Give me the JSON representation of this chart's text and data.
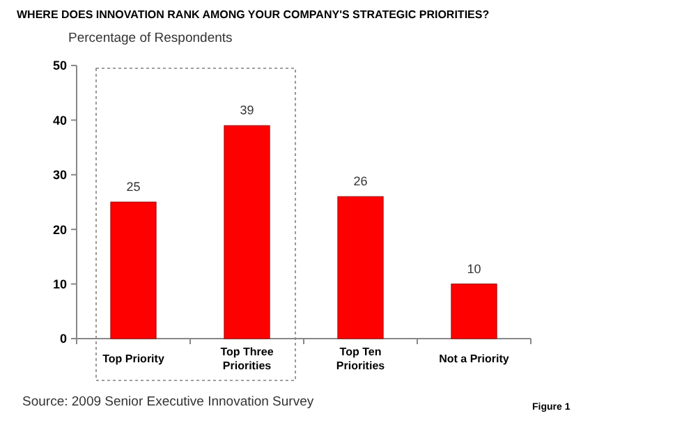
{
  "chart_data": {
    "type": "bar",
    "title": "WHERE DOES INNOVATION RANK AMONG YOUR COMPANY'S STRATEGIC PRIORITIES?",
    "ylabel": "Percentage of Respondents",
    "categories": [
      "Top Priority",
      "Top Three Priorities",
      "Top Ten Priorities",
      "Not a Priority"
    ],
    "values": [
      25,
      39,
      26,
      10
    ],
    "color": "#ff0000",
    "data_labels": true,
    "ylim": [
      0,
      50
    ],
    "yticks": [
      0,
      10,
      20,
      30,
      40,
      50
    ],
    "annotations": [
      "Source: 2009 Senior Executive Innovation Survey",
      "Figure 1"
    ]
  }
}
